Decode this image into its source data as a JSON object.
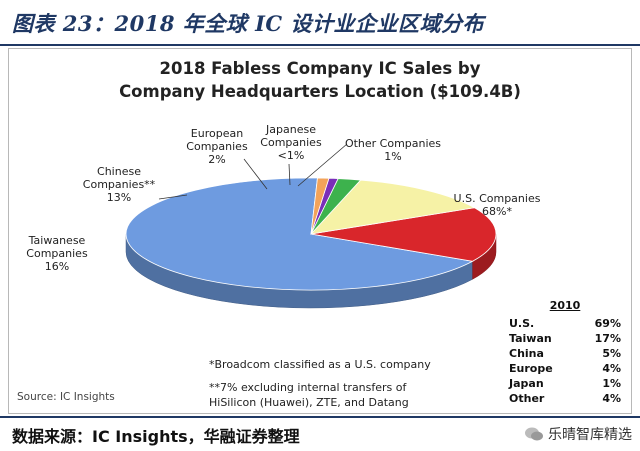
{
  "figure_caption": "图表 23：2018 年全球 IC 设计业企业区域分布",
  "chart_data": {
    "type": "pie",
    "title_line1": "2018 Fabless Company IC Sales by",
    "title_line2": "Company Headquarters Location ($109.4B)",
    "slices": [
      {
        "label_lines": [
          "U.S. Companies",
          "68%*"
        ],
        "value": 68,
        "color": "#6e9be0"
      },
      {
        "label_lines": [
          "Taiwanese",
          "Companies",
          "16%"
        ],
        "value": 16,
        "color": "#d9262b"
      },
      {
        "label_lines": [
          "Chinese",
          "Companies**",
          "13%"
        ],
        "value": 13,
        "color": "#f6f2a6"
      },
      {
        "label_lines": [
          "European",
          "Companies",
          "2%"
        ],
        "value": 2,
        "color": "#3db24d"
      },
      {
        "label_lines": [
          "Japanese",
          "Companies",
          "<1%"
        ],
        "value": 0.8,
        "color": "#7a2fb8"
      },
      {
        "label_lines": [
          "Other Companies",
          "1%"
        ],
        "value": 1,
        "color": "#f3a35a"
      }
    ],
    "table": {
      "header": "2010",
      "rows": [
        {
          "name": "U.S.",
          "value": "69%"
        },
        {
          "name": "Taiwan",
          "value": "17%"
        },
        {
          "name": "China",
          "value": "5%"
        },
        {
          "name": "Europe",
          "value": "4%"
        },
        {
          "name": "Japan",
          "value": "1%"
        },
        {
          "name": "Other",
          "value": "4%"
        }
      ]
    },
    "notes": [
      "*Broadcom classified as a U.S. company",
      "**7% excluding internal transfers of",
      "HiSilicon (Huawei), ZTE, and Datang"
    ],
    "source": "Source: IC Insights"
  },
  "footer_source": "数据来源：IC Insights，华融证券整理",
  "watermark": "乐晴智库精选"
}
